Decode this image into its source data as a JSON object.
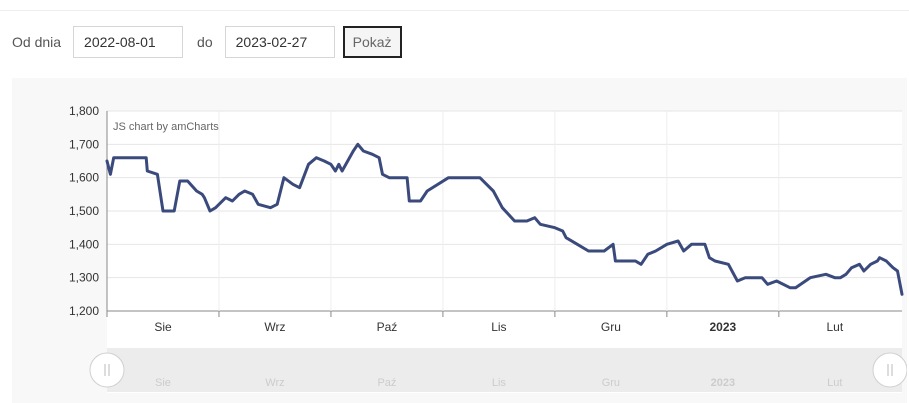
{
  "filter": {
    "from_label": "Od dnia",
    "from_value": "2022-08-01",
    "to_label": "do",
    "to_value": "2023-02-27",
    "button_label": "Pokaż"
  },
  "chart_data": {
    "type": "line",
    "title": "",
    "xlabel": "",
    "ylabel": "",
    "ylim": [
      1200,
      1800
    ],
    "yticks": [
      "1,200",
      "1,300",
      "1,400",
      "1,500",
      "1,600",
      "1,700",
      "1,800"
    ],
    "xlim": [
      -0.5,
      6.6
    ],
    "xticks": [
      {
        "pos": 0,
        "label": "Sie",
        "bold": false
      },
      {
        "pos": 1,
        "label": "Wrz",
        "bold": false
      },
      {
        "pos": 2,
        "label": "Paź",
        "bold": false
      },
      {
        "pos": 3,
        "label": "Lis",
        "bold": false
      },
      {
        "pos": 4,
        "label": "Gru",
        "bold": false
      },
      {
        "pos": 5,
        "label": "2023",
        "bold": true
      },
      {
        "pos": 6,
        "label": "Lut",
        "bold": false
      }
    ],
    "grid": true,
    "credit": "JS chart by amCharts",
    "line_color": "#3b4a7c",
    "series": [
      {
        "values": [
          [
            -0.5,
            1650
          ],
          [
            -0.47,
            1610
          ],
          [
            -0.44,
            1660
          ],
          [
            -0.2,
            1660
          ],
          [
            -0.15,
            1660
          ],
          [
            -0.14,
            1620
          ],
          [
            -0.05,
            1610
          ],
          [
            0.0,
            1500
          ],
          [
            0.1,
            1500
          ],
          [
            0.15,
            1590
          ],
          [
            0.22,
            1590
          ],
          [
            0.3,
            1560
          ],
          [
            0.35,
            1550
          ],
          [
            0.37,
            1540
          ],
          [
            0.42,
            1500
          ],
          [
            0.47,
            1510
          ],
          [
            0.56,
            1540
          ],
          [
            0.62,
            1530
          ],
          [
            0.68,
            1550
          ],
          [
            0.73,
            1560
          ],
          [
            0.8,
            1550
          ],
          [
            0.85,
            1520
          ],
          [
            0.96,
            1510
          ],
          [
            1.02,
            1520
          ],
          [
            1.08,
            1600
          ],
          [
            1.16,
            1580
          ],
          [
            1.22,
            1570
          ],
          [
            1.3,
            1640
          ],
          [
            1.37,
            1660
          ],
          [
            1.44,
            1650
          ],
          [
            1.5,
            1640
          ],
          [
            1.54,
            1620
          ],
          [
            1.57,
            1640
          ],
          [
            1.6,
            1620
          ],
          [
            1.7,
            1680
          ],
          [
            1.74,
            1700
          ],
          [
            1.79,
            1680
          ],
          [
            1.87,
            1670
          ],
          [
            1.93,
            1660
          ],
          [
            1.96,
            1610
          ],
          [
            2.02,
            1600
          ],
          [
            2.18,
            1600
          ],
          [
            2.2,
            1530
          ],
          [
            2.3,
            1530
          ],
          [
            2.36,
            1560
          ],
          [
            2.55,
            1600
          ],
          [
            2.83,
            1600
          ],
          [
            2.95,
            1560
          ],
          [
            3.03,
            1510
          ],
          [
            3.14,
            1470
          ],
          [
            3.25,
            1470
          ],
          [
            3.32,
            1480
          ],
          [
            3.37,
            1460
          ],
          [
            3.5,
            1450
          ],
          [
            3.57,
            1440
          ],
          [
            3.6,
            1420
          ],
          [
            3.7,
            1400
          ],
          [
            3.8,
            1380
          ],
          [
            3.88,
            1380
          ],
          [
            3.94,
            1380
          ],
          [
            4.02,
            1400
          ],
          [
            4.04,
            1350
          ],
          [
            4.22,
            1350
          ],
          [
            4.27,
            1340
          ],
          [
            4.33,
            1370
          ],
          [
            4.4,
            1380
          ],
          [
            4.5,
            1400
          ],
          [
            4.6,
            1410
          ],
          [
            4.65,
            1380
          ],
          [
            4.72,
            1400
          ],
          [
            4.84,
            1400
          ],
          [
            4.88,
            1360
          ],
          [
            4.93,
            1350
          ],
          [
            5.05,
            1340
          ],
          [
            5.13,
            1290
          ],
          [
            5.2,
            1300
          ],
          [
            5.35,
            1300
          ],
          [
            5.4,
            1280
          ],
          [
            5.48,
            1290
          ],
          [
            5.6,
            1270
          ],
          [
            5.65,
            1270
          ],
          [
            5.78,
            1300
          ],
          [
            5.92,
            1310
          ],
          [
            6.0,
            1300
          ],
          [
            6.05,
            1300
          ],
          [
            6.1,
            1310
          ],
          [
            6.15,
            1330
          ],
          [
            6.22,
            1340
          ],
          [
            6.26,
            1320
          ],
          [
            6.32,
            1340
          ],
          [
            6.38,
            1350
          ],
          [
            6.4,
            1360
          ],
          [
            6.46,
            1350
          ],
          [
            6.52,
            1330
          ],
          [
            6.56,
            1320
          ],
          [
            6.6,
            1250
          ]
        ]
      }
    ]
  }
}
